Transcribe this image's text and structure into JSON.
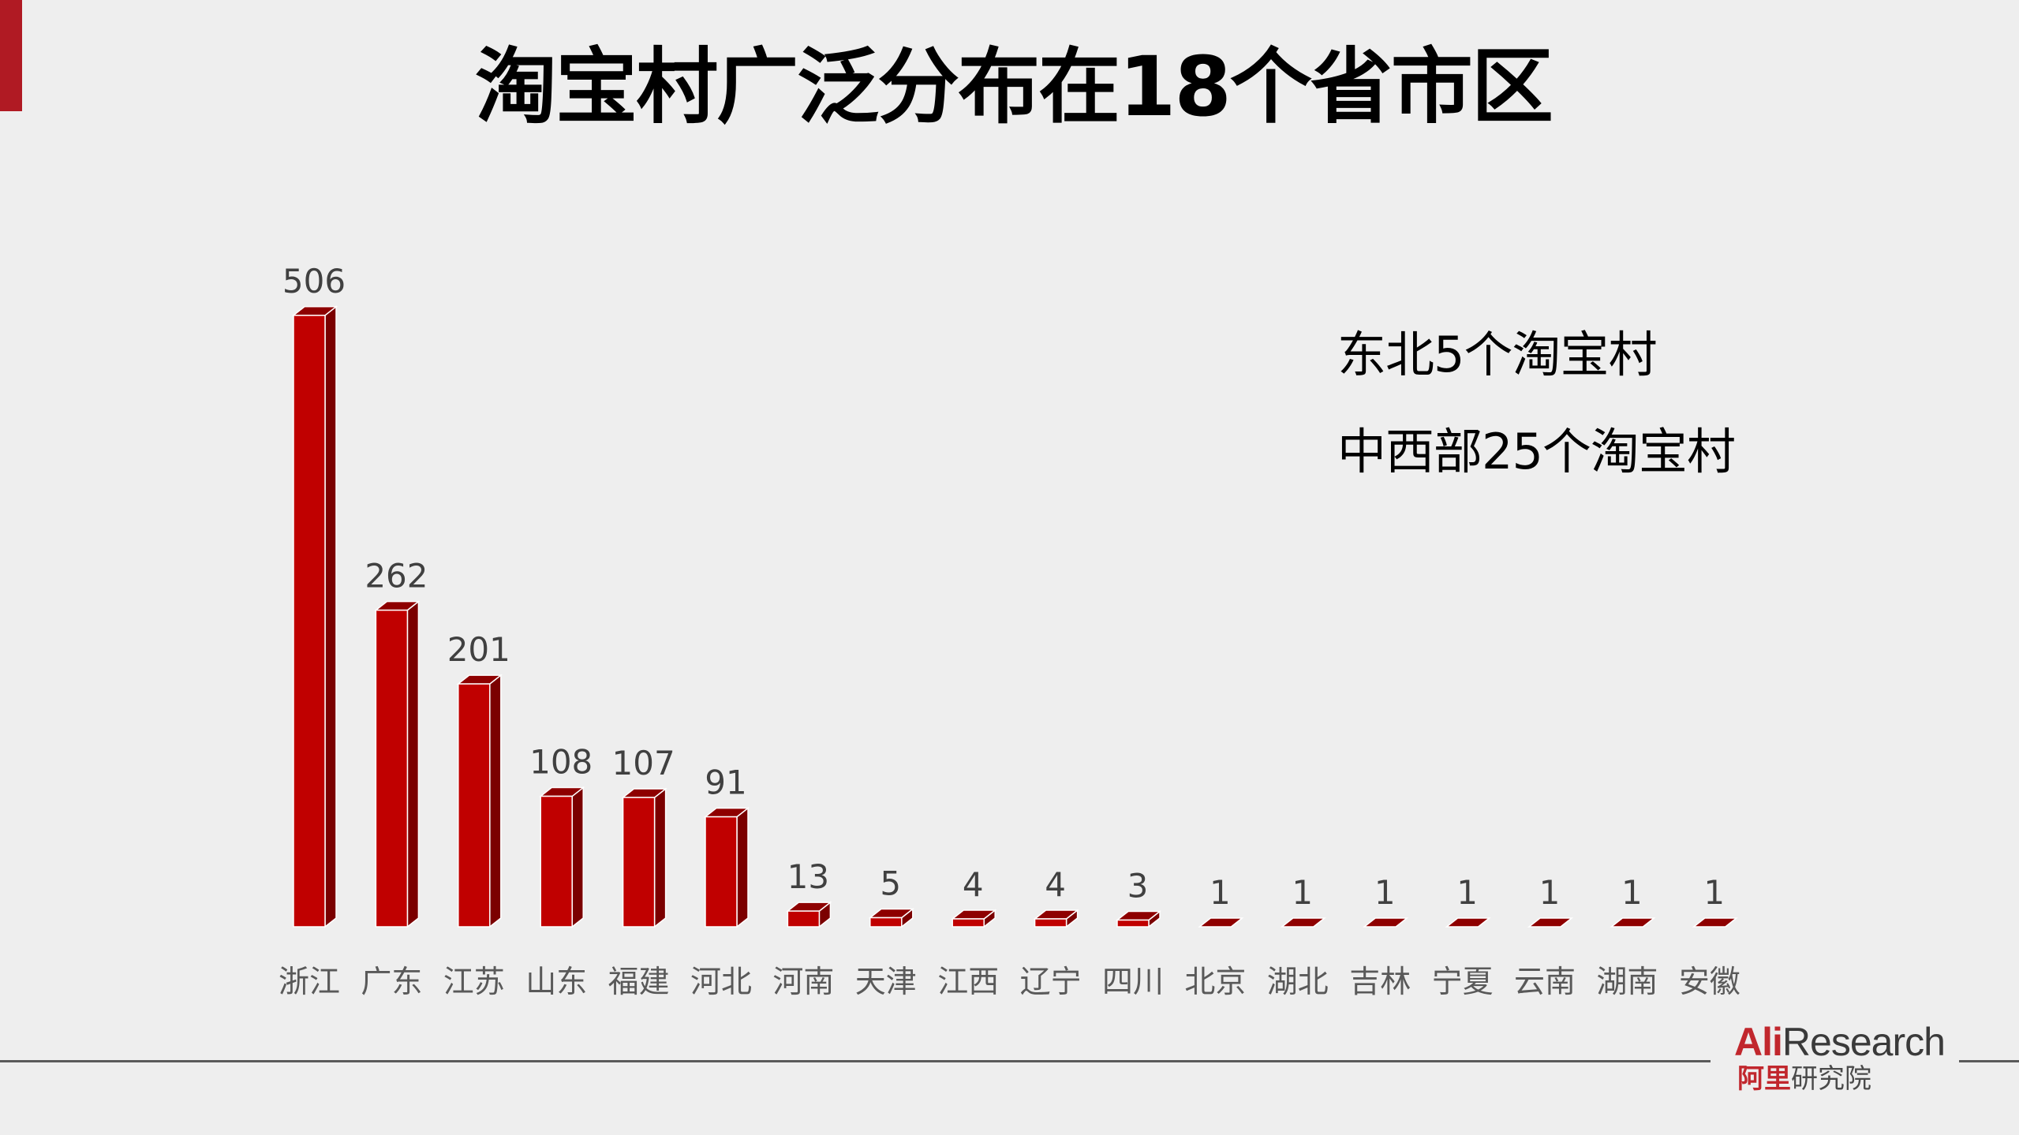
{
  "slide": {
    "title": "淘宝村广泛分布在18个省市区",
    "accent_color": "#b01a23",
    "annotations": [
      "东北5个淘宝村",
      "中西部25个淘宝村"
    ],
    "logo": {
      "en_brand": "Ali",
      "en_rest": "Research",
      "cn_brand": "阿里",
      "cn_rest": "研究院"
    }
  },
  "chart_data": {
    "type": "bar",
    "style": "3d-column",
    "title": "淘宝村广泛分布在18个省市区",
    "xlabel": "",
    "ylabel": "",
    "categories": [
      "浙江",
      "广东",
      "江苏",
      "山东",
      "福建",
      "河北",
      "河南",
      "天津",
      "江西",
      "辽宁",
      "四川",
      "北京",
      "湖北",
      "吉林",
      "宁夏",
      "云南",
      "湖南",
      "安徽"
    ],
    "values": [
      506,
      262,
      201,
      108,
      107,
      91,
      13,
      5,
      4,
      4,
      3,
      1,
      1,
      1,
      1,
      1,
      1,
      1
    ],
    "data_labels": true,
    "grid": false,
    "legend": "none",
    "ylim": [
      0,
      520
    ],
    "colors": {
      "front": "#c00000",
      "side": "#7b0000",
      "top": "#8e0000",
      "outline": "#ffffff"
    }
  }
}
